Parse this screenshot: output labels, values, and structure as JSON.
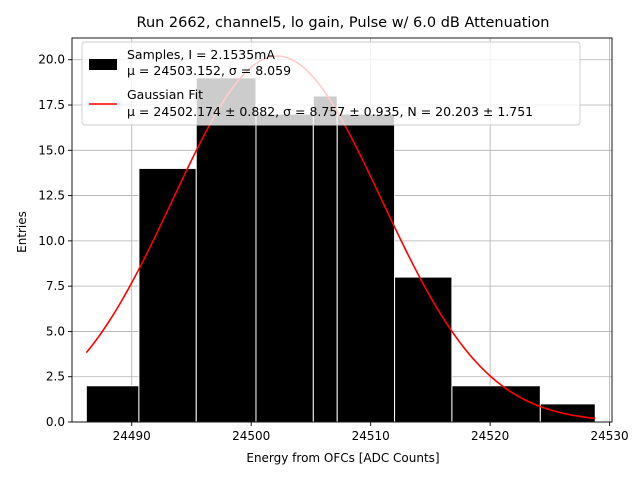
{
  "chart_data": {
    "type": "bar",
    "title": "Run 2662, channel5, lo gain, Pulse w/ 6.0 dB Attenuation",
    "xlabel": "Energy from OFCs [ADC Counts]",
    "ylabel": "Entries",
    "xlim": [
      24485.0,
      24530.2
    ],
    "ylim": [
      0,
      21.2
    ],
    "xticks": [
      24490,
      24500,
      24510,
      24520,
      24530
    ],
    "yticks": [
      0.0,
      2.5,
      5.0,
      7.5,
      10.0,
      12.5,
      15.0,
      17.5,
      20.0
    ],
    "grid": true,
    "legend_position": "top-left",
    "histogram": {
      "name": "Samples, I = 2.1535mA",
      "stats": "μ = 24503.152, σ = 8.059",
      "color": "#000000",
      "edgecolor": "#ffffff",
      "bins": [
        {
          "x0": 24486.2,
          "x1": 24490.6,
          "count": 2
        },
        {
          "x0": 24490.6,
          "x1": 24495.4,
          "count": 14
        },
        {
          "x0": 24495.4,
          "x1": 24500.4,
          "count": 19
        },
        {
          "x0": 24500.4,
          "x1": 24505.2,
          "count": 17
        },
        {
          "x0": 24505.2,
          "x1": 24507.2,
          "count": 18
        },
        {
          "x0": 24507.2,
          "x1": 24512.0,
          "count": 17
        },
        {
          "x0": 24512.0,
          "x1": 24516.8,
          "count": 8
        },
        {
          "x0": 24516.8,
          "x1": 24524.2,
          "count": 2
        },
        {
          "x0": 24524.2,
          "x1": 24528.8,
          "count": 1
        }
      ]
    },
    "fit": {
      "name": "Gaussian Fit",
      "stats": "μ = 24502.174 ± 0.882, σ = 8.757 ± 0.935, N = 20.203 ± 1.751",
      "color": "#ff0000",
      "mu": 24502.174,
      "sigma": 8.757,
      "amplitude": 20.203,
      "x_range": [
        24486.2,
        24528.8
      ]
    }
  }
}
